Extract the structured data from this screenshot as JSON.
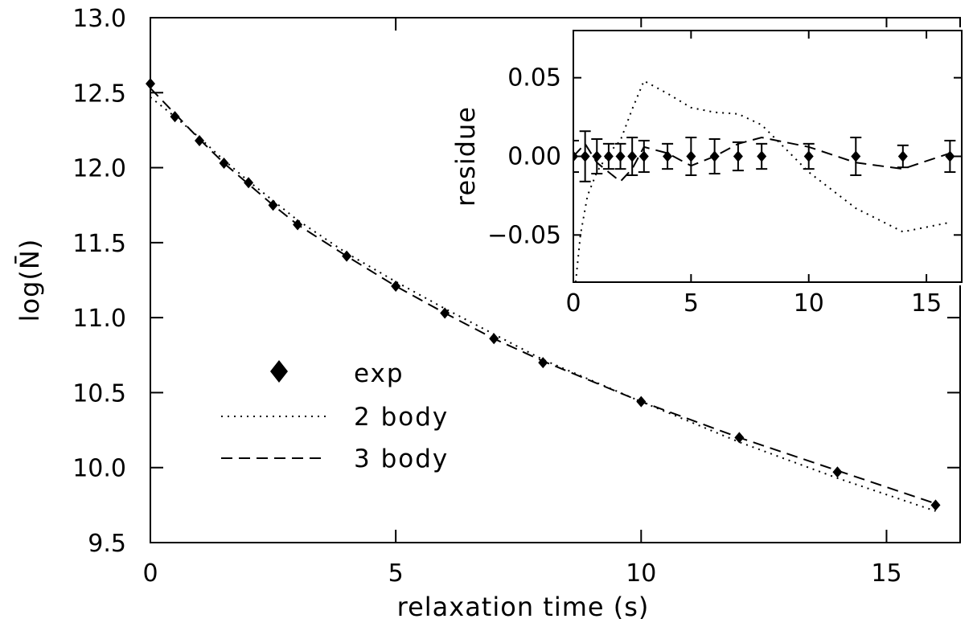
{
  "chart_data": [
    {
      "id": "main",
      "type": "line",
      "xlabel": "relaxation time (s)",
      "ylabel": "log(N̄)",
      "xlim": [
        0,
        16.5
      ],
      "ylim": [
        9.5,
        13.0
      ],
      "xticks": [
        0,
        5,
        10,
        15
      ],
      "xtick_labels": [
        "0",
        "5",
        "10",
        "15"
      ],
      "yticks": [
        9.5,
        10.0,
        10.5,
        11.0,
        11.5,
        12.0,
        12.5,
        13.0
      ],
      "ytick_labels": [
        "9.5",
        "10.0",
        "10.5",
        "11.0",
        "11.5",
        "12.0",
        "12.5",
        "13.0"
      ],
      "grid": false,
      "legend_position": "lower-left",
      "legend": [
        {
          "label": "exp",
          "marker": "diamond"
        },
        {
          "label": "2 body",
          "style": "dotted"
        },
        {
          "label": "3 body",
          "style": "dashed"
        }
      ],
      "series": [
        {
          "name": "exp",
          "kind": "markers",
          "x": [
            0,
            0.5,
            1,
            1.5,
            2,
            2.5,
            3,
            4,
            5,
            6,
            7,
            8,
            10,
            12,
            14,
            16
          ],
          "y": [
            12.56,
            12.34,
            12.18,
            12.03,
            11.9,
            11.75,
            11.62,
            11.41,
            11.21,
            11.03,
            10.86,
            10.7,
            10.44,
            10.2,
            9.97,
            9.75
          ]
        },
        {
          "name": "2 body",
          "kind": "line",
          "style": "dotted",
          "x": [
            0,
            0.5,
            1,
            1.5,
            2,
            2.5,
            3,
            4,
            5,
            6,
            7,
            8,
            10,
            12,
            14,
            16
          ],
          "y": [
            12.47,
            12.34,
            12.2,
            12.05,
            11.91,
            11.78,
            11.65,
            11.43,
            11.24,
            11.06,
            10.89,
            10.72,
            10.44,
            10.17,
            9.93,
            9.71
          ]
        },
        {
          "name": "3 body",
          "kind": "line",
          "style": "dashed",
          "x": [
            0,
            0.5,
            1,
            1.5,
            2,
            2.5,
            3,
            4,
            5,
            6,
            7,
            8,
            10,
            12,
            14,
            16
          ],
          "y": [
            12.53,
            12.36,
            12.19,
            12.03,
            11.89,
            11.75,
            11.62,
            11.41,
            11.21,
            11.03,
            10.86,
            10.71,
            10.44,
            10.2,
            9.98,
            9.76
          ]
        }
      ]
    },
    {
      "id": "inset",
      "type": "line",
      "xlabel": "",
      "ylabel": "residue",
      "xlim": [
        0,
        16.5
      ],
      "ylim": [
        -0.08,
        0.08
      ],
      "xticks": [
        0,
        5,
        10,
        15
      ],
      "xtick_labels": [
        "0",
        "5",
        "10",
        "15"
      ],
      "yticks": [
        -0.05,
        0.0,
        0.05
      ],
      "ytick_labels": [
        "−0.05",
        "0.00",
        "0.05"
      ],
      "grid": false,
      "series": [
        {
          "name": "exp",
          "kind": "markers-errorbars",
          "x": [
            0,
            0.5,
            1,
            1.5,
            2,
            2.5,
            3,
            4,
            5,
            6,
            7,
            8,
            10,
            12,
            14,
            16
          ],
          "y": [
            0,
            0,
            0,
            0,
            0,
            0,
            0,
            0,
            0,
            0,
            0,
            0,
            0,
            0,
            0,
            0
          ],
          "err": [
            0.01,
            0.016,
            0.011,
            0.008,
            0.008,
            0.012,
            0.01,
            0.008,
            0.012,
            0.011,
            0.009,
            0.008,
            0.008,
            0.012,
            0.007,
            0.01
          ]
        },
        {
          "name": "2 body",
          "kind": "line",
          "style": "dotted",
          "x": [
            0.1,
            0.3,
            0.6,
            1,
            1.5,
            2,
            2.5,
            3,
            4,
            5,
            6,
            7,
            8,
            9,
            10,
            12,
            14,
            16
          ],
          "y": [
            -0.08,
            -0.05,
            -0.025,
            -0.01,
            0.002,
            0.01,
            0.03,
            0.048,
            0.04,
            0.031,
            0.028,
            0.027,
            0.02,
            0.005,
            -0.01,
            -0.033,
            -0.048,
            -0.042
          ]
        },
        {
          "name": "3 body",
          "kind": "line",
          "style": "dashed",
          "x": [
            0,
            0.5,
            1,
            1.5,
            2,
            2.5,
            3,
            4,
            5,
            6,
            7,
            8,
            10,
            12,
            14,
            16
          ],
          "y": [
            0.0,
            0.008,
            -0.004,
            -0.01,
            -0.016,
            -0.008,
            0.006,
            0.002,
            -0.006,
            0.0,
            0.008,
            0.012,
            0.006,
            -0.004,
            -0.008,
            0.002
          ]
        }
      ]
    }
  ]
}
